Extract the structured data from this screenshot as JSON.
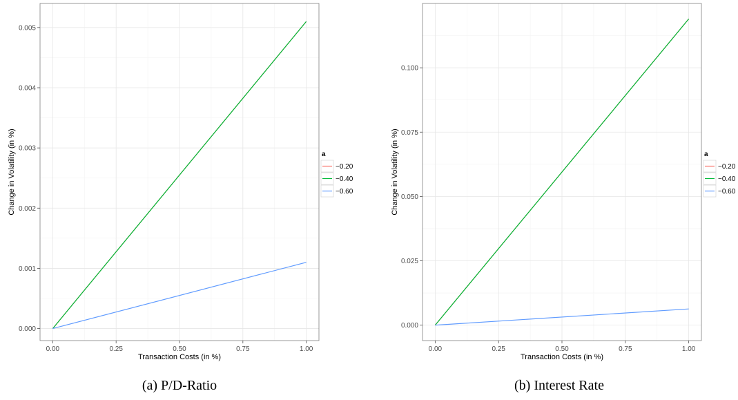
{
  "chart_data": [
    {
      "type": "line",
      "caption": "(a) P/D-Ratio",
      "xlabel": "Transaction Costs (in %)",
      "ylabel": "Change in Volatility (in %)",
      "xlim": [
        -0.05,
        1.05
      ],
      "ylim": [
        -0.0002,
        0.0054
      ],
      "xticks": [
        0,
        0.25,
        0.5,
        0.75,
        1
      ],
      "xtick_labels": [
        "0.00",
        "0.25",
        "0.50",
        "0.75",
        "1.00"
      ],
      "yticks": [
        0,
        0.001,
        0.002,
        0.003,
        0.004,
        0.005
      ],
      "ytick_labels": [
        "0.000",
        "0.001",
        "0.002",
        "0.003",
        "0.004",
        "0.005"
      ],
      "grid": true,
      "legend": {
        "title": "a",
        "placement": "right",
        "entries": [
          {
            "label": "−0.20",
            "color": "#f8766d"
          },
          {
            "label": "−0.40",
            "color": "#00ba38"
          },
          {
            "label": "−0.60",
            "color": "#619cff"
          }
        ]
      },
      "series": [
        {
          "name": "−0.20",
          "color": "#f8766d",
          "x": [
            0,
            1
          ],
          "y": [
            0,
            0.0051
          ]
        },
        {
          "name": "−0.40",
          "color": "#00ba38",
          "x": [
            0,
            1
          ],
          "y": [
            0,
            0.0051
          ]
        },
        {
          "name": "−0.60",
          "color": "#619cff",
          "x": [
            0,
            1
          ],
          "y": [
            0,
            0.0011
          ]
        }
      ]
    },
    {
      "type": "line",
      "caption": "(b) Interest Rate",
      "xlabel": "Transaction Costs (in %)",
      "ylabel": "Change in Volatility (in %)",
      "xlim": [
        -0.05,
        1.05
      ],
      "ylim": [
        -0.006,
        0.125
      ],
      "xticks": [
        0,
        0.25,
        0.5,
        0.75,
        1
      ],
      "xtick_labels": [
        "0.00",
        "0.25",
        "0.50",
        "0.75",
        "1.00"
      ],
      "yticks": [
        0,
        0.025,
        0.05,
        0.075,
        0.1
      ],
      "ytick_labels": [
        "0.000",
        "0.025",
        "0.050",
        "0.075",
        "0.100"
      ],
      "grid": true,
      "legend": {
        "title": "a",
        "placement": "right",
        "entries": [
          {
            "label": "−0.20",
            "color": "#f8766d"
          },
          {
            "label": "−0.40",
            "color": "#00ba38"
          },
          {
            "label": "−0.60",
            "color": "#619cff"
          }
        ]
      },
      "series": [
        {
          "name": "−0.20",
          "color": "#f8766d",
          "x": [
            0,
            1
          ],
          "y": [
            0,
            0.119
          ]
        },
        {
          "name": "−0.40",
          "color": "#00ba38",
          "x": [
            0,
            1
          ],
          "y": [
            0,
            0.119
          ]
        },
        {
          "name": "−0.60",
          "color": "#619cff",
          "x": [
            0,
            1
          ],
          "y": [
            0,
            0.0063
          ]
        }
      ]
    }
  ]
}
